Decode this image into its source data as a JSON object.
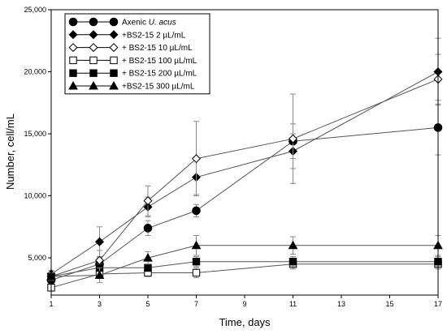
{
  "chart_data": {
    "type": "line",
    "xlabel": "Time, days",
    "ylabel": "Number, cell/mL",
    "xlim": [
      1,
      17
    ],
    "ylim": [
      2000,
      25000
    ],
    "x_ticks": [
      1,
      3,
      5,
      7,
      9,
      11,
      13,
      15,
      17
    ],
    "y_ticks": [
      5000,
      10000,
      15000,
      20000,
      25000
    ],
    "y_tick_labels": [
      "5,000",
      "10,000",
      "15,000",
      "20,000",
      "25,000"
    ],
    "legend_position": "top-left",
    "grid": false,
    "series": [
      {
        "name": "Axenic U. acus",
        "name_prefix": "Axenic ",
        "name_italic": "U. acus",
        "marker": "circle",
        "filled": true,
        "x": [
          1,
          3,
          5,
          7,
          11,
          17
        ],
        "y": [
          3200,
          4500,
          7400,
          8800,
          14400,
          15500
        ],
        "err": [
          300,
          500,
          600,
          500,
          1400,
          2200
        ]
      },
      {
        "name": "+BS2-15 2 µL/mL",
        "marker": "diamond",
        "filled": true,
        "x": [
          1,
          3,
          5,
          7,
          11,
          17
        ],
        "y": [
          3700,
          6300,
          9100,
          11500,
          13600,
          20000
        ],
        "err": [
          300,
          1200,
          800,
          1400,
          1400,
          2700
        ]
      },
      {
        "name": "+ BS2-15 10 µL/mL",
        "marker": "diamond",
        "filled": false,
        "x": [
          1,
          3,
          5,
          7,
          11,
          17
        ],
        "y": [
          3500,
          4800,
          9600,
          13000,
          14600,
          19400
        ],
        "err": [
          300,
          800,
          1200,
          3000,
          3600,
          2000
        ]
      },
      {
        "name": "+ BS2-15 100 µL/mL",
        "marker": "square",
        "filled": false,
        "x": [
          1,
          3,
          5,
          7,
          11,
          17
        ],
        "y": [
          2600,
          3700,
          3800,
          3800,
          4500,
          4500
        ],
        "err": [
          200,
          300,
          300,
          400,
          400,
          400
        ]
      },
      {
        "name": "+ BS2-15 200 µL/mL",
        "marker": "square",
        "filled": true,
        "x": [
          1,
          3,
          5,
          7,
          11,
          17
        ],
        "y": [
          3500,
          4200,
          4200,
          4700,
          4700,
          4700
        ],
        "err": [
          300,
          300,
          300,
          400,
          400,
          400
        ]
      },
      {
        "name": "+BS2-15 300 µL/mL",
        "marker": "triangle",
        "filled": true,
        "x": [
          1,
          3,
          5,
          7,
          11,
          17
        ],
        "y": [
          3500,
          3600,
          5000,
          6000,
          6000,
          6000
        ],
        "err": [
          300,
          600,
          500,
          800,
          700,
          800
        ]
      }
    ]
  }
}
